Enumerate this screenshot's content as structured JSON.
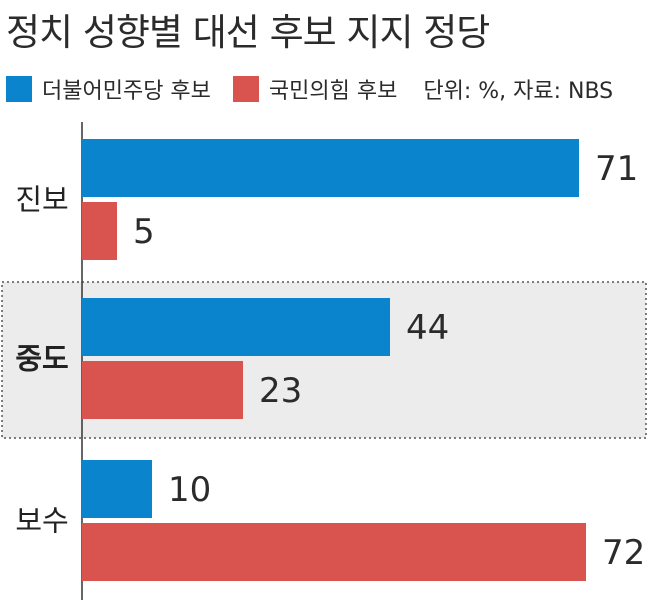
{
  "title": "정치 성향별 대선 후보 지지 정당",
  "legend": {
    "unit": "단위: %, 자료: NBS"
  },
  "colors": {
    "series_blue": "#0a84cc",
    "series_red": "#d9534f",
    "highlight_bg": "#ececec",
    "axis": "#333333"
  },
  "chart_data": {
    "type": "bar",
    "orientation": "horizontal",
    "title": "정치 성향별 대선 후보 지지 정당",
    "categories": [
      "진보",
      "중도",
      "보수"
    ],
    "highlighted_category": "중도",
    "series": [
      {
        "name": "더불어민주당 후보",
        "values": [
          71,
          44,
          10
        ]
      },
      {
        "name": "국민의힘 후보",
        "values": [
          5,
          23,
          72
        ]
      }
    ],
    "unit": "%",
    "source": "NBS",
    "xlim": [
      0,
      80
    ],
    "grid": false,
    "legend_position": "top-left"
  }
}
